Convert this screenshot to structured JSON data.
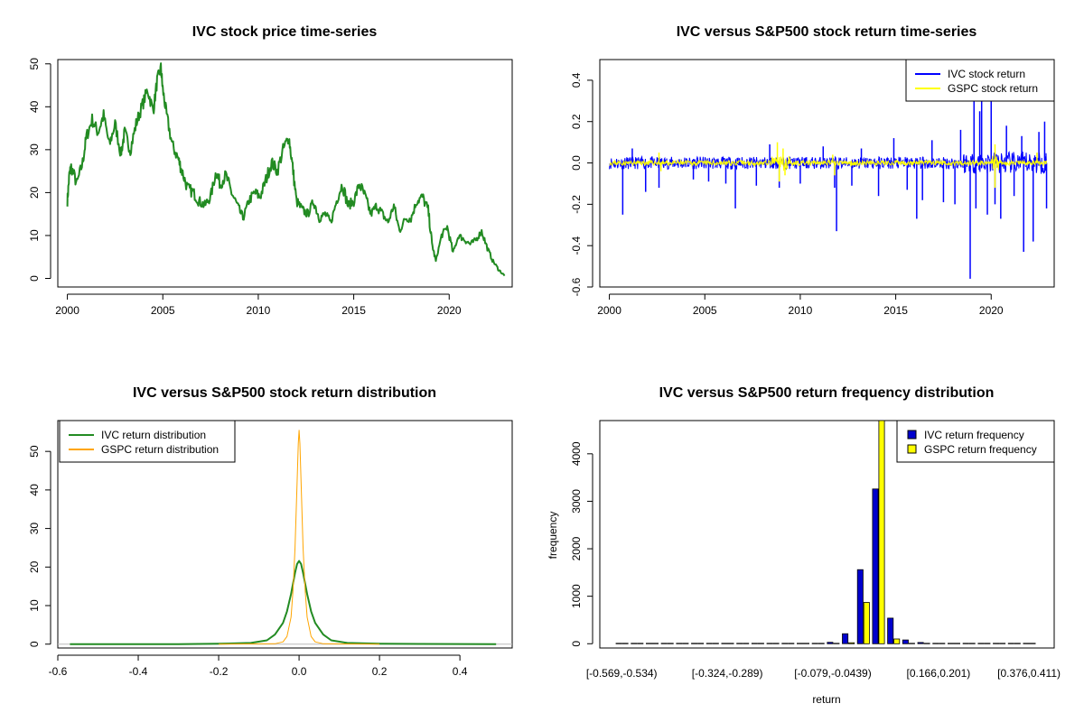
{
  "colors": {
    "price": "#228B22",
    "ivc_return": "#0000FF",
    "gspc_return": "#FFFF00",
    "ivc_density": "#228B22",
    "gspc_density": "#FFA500",
    "ivc_freq": "#0000CD",
    "gspc_freq": "#FFFF00"
  },
  "chart_data": [
    {
      "type": "line",
      "title": "IVC stock price time-series",
      "xlabel": "",
      "ylabel": "",
      "xlim": [
        1999.5,
        2023.3
      ],
      "ylim": [
        -2,
        51
      ],
      "x_ticks": [
        2000,
        2005,
        2010,
        2015,
        2020
      ],
      "y_ticks": [
        0,
        10,
        20,
        30,
        40,
        50
      ],
      "grid": false,
      "series": [
        {
          "color_key": "price",
          "x": [
            2000.0,
            2000.1,
            2000.2,
            2000.5,
            2000.8,
            2001.0,
            2001.3,
            2001.6,
            2001.9,
            2002.2,
            2002.5,
            2002.8,
            2003.0,
            2003.3,
            2003.6,
            2003.9,
            2004.2,
            2004.5,
            2004.7,
            2004.9,
            2005.0,
            2005.2,
            2005.5,
            2005.8,
            2006.0,
            2006.3,
            2006.6,
            2006.9,
            2007.2,
            2007.5,
            2007.8,
            2008.0,
            2008.3,
            2008.6,
            2008.9,
            2009.2,
            2009.5,
            2009.8,
            2010.1,
            2010.4,
            2010.7,
            2011.0,
            2011.3,
            2011.6,
            2011.8,
            2012.0,
            2012.3,
            2012.6,
            2012.9,
            2013.2,
            2013.5,
            2013.8,
            2014.1,
            2014.4,
            2014.7,
            2015.0,
            2015.3,
            2015.6,
            2015.9,
            2016.2,
            2016.5,
            2016.8,
            2017.1,
            2017.4,
            2017.7,
            2018.0,
            2018.3,
            2018.6,
            2018.9,
            2019.1,
            2019.3,
            2019.6,
            2019.9,
            2020.2,
            2020.5,
            2020.8,
            2021.1,
            2021.4,
            2021.7,
            2022.0,
            2022.3,
            2022.6,
            2022.9
          ],
          "y": [
            18,
            24,
            26,
            22,
            27,
            33,
            37,
            34,
            38,
            31,
            36,
            29,
            34,
            30,
            36,
            40,
            44,
            39,
            46,
            49,
            44,
            38,
            31,
            28,
            25,
            21,
            20,
            18,
            17,
            19,
            25,
            22,
            24,
            20,
            17,
            14,
            18,
            20,
            19,
            23,
            27,
            25,
            30,
            33,
            26,
            18,
            16,
            15,
            18,
            14,
            15,
            13,
            18,
            22,
            17,
            18,
            22,
            19,
            15,
            17,
            15,
            13,
            17,
            11,
            14,
            14,
            18,
            19,
            16,
            8,
            4,
            10,
            12,
            6,
            10,
            9,
            8,
            9,
            11,
            7,
            4,
            2,
            0.6
          ]
        }
      ]
    },
    {
      "type": "line",
      "title": "IVC versus S&P500 stock return time-series",
      "xlabel": "",
      "ylabel": "",
      "xlim": [
        1999.5,
        2023.3
      ],
      "ylim": [
        -0.6,
        0.5
      ],
      "x_ticks": [
        2000,
        2005,
        2010,
        2015,
        2020
      ],
      "y_ticks": [
        -0.6,
        -0.4,
        -0.2,
        0.0,
        0.2,
        0.4
      ],
      "y_tick_labels": [
        "-0.6",
        "-0.4",
        "-0.2",
        "0.0",
        "0.2",
        "0.4"
      ],
      "grid": false,
      "legend": "top-right",
      "series": [
        {
          "name": "IVC stock return",
          "color_key": "ivc_return",
          "base_band": [
            -0.03,
            0.03
          ],
          "spikes": [
            [
              2000.7,
              -0.25
            ],
            [
              2001.2,
              0.07
            ],
            [
              2001.9,
              -0.14
            ],
            [
              2002.6,
              -0.12
            ],
            [
              2004.4,
              -0.08
            ],
            [
              2005.2,
              -0.09
            ],
            [
              2006.1,
              -0.1
            ],
            [
              2006.6,
              -0.22
            ],
            [
              2007.7,
              -0.11
            ],
            [
              2008.4,
              0.09
            ],
            [
              2008.9,
              -0.12
            ],
            [
              2010.0,
              -0.1
            ],
            [
              2011.2,
              0.08
            ],
            [
              2011.8,
              -0.12
            ],
            [
              2011.9,
              -0.33
            ],
            [
              2012.7,
              -0.11
            ],
            [
              2013.2,
              0.07
            ],
            [
              2014.1,
              -0.16
            ],
            [
              2014.9,
              0.12
            ],
            [
              2015.6,
              -0.13
            ],
            [
              2016.1,
              -0.27
            ],
            [
              2016.4,
              -0.18
            ],
            [
              2016.9,
              0.11
            ],
            [
              2017.5,
              -0.19
            ],
            [
              2018.1,
              -0.2
            ],
            [
              2018.4,
              0.16
            ],
            [
              2018.9,
              -0.56
            ],
            [
              2019.1,
              0.3
            ],
            [
              2019.2,
              -0.22
            ],
            [
              2019.4,
              0.25
            ],
            [
              2019.5,
              0.32
            ],
            [
              2019.8,
              -0.25
            ],
            [
              2020.0,
              0.3
            ],
            [
              2020.2,
              -0.2
            ],
            [
              2020.5,
              -0.27
            ],
            [
              2020.8,
              0.18
            ],
            [
              2021.2,
              -0.16
            ],
            [
              2021.6,
              0.13
            ],
            [
              2021.7,
              -0.43
            ],
            [
              2022.2,
              -0.38
            ],
            [
              2022.5,
              0.15
            ],
            [
              2022.8,
              0.2
            ],
            [
              2022.9,
              -0.22
            ]
          ]
        },
        {
          "name": "GSPC stock return",
          "color_key": "gspc_return",
          "base_band": [
            -0.012,
            0.012
          ],
          "spikes": [
            [
              2002.6,
              0.05
            ],
            [
              2002.7,
              -0.04
            ],
            [
              2008.8,
              0.1
            ],
            [
              2008.9,
              -0.09
            ],
            [
              2009.1,
              0.07
            ],
            [
              2009.2,
              -0.06
            ],
            [
              2011.7,
              0.04
            ],
            [
              2011.8,
              -0.06
            ],
            [
              2020.2,
              0.09
            ],
            [
              2020.2,
              -0.12
            ],
            [
              2022.4,
              0.05
            ]
          ]
        }
      ]
    },
    {
      "type": "line",
      "title": "IVC versus S&P500 stock return distribution",
      "xlabel": "",
      "ylabel": "",
      "xlim": [
        -0.6,
        0.53
      ],
      "ylim": [
        -1,
        58
      ],
      "x_ticks": [
        -0.6,
        -0.4,
        -0.2,
        0.0,
        0.2,
        0.4
      ],
      "x_tick_labels": [
        "-0.6",
        "-0.4",
        "-0.2",
        "0.0",
        "0.2",
        "0.4"
      ],
      "y_ticks": [
        0,
        10,
        20,
        30,
        40,
        50
      ],
      "grid": false,
      "legend": "top-left",
      "series": [
        {
          "name": "IVC return distribution",
          "color_key": "ivc_density",
          "x": [
            -0.57,
            -0.3,
            -0.2,
            -0.12,
            -0.08,
            -0.06,
            -0.04,
            -0.03,
            -0.02,
            -0.01,
            -0.005,
            0.0,
            0.005,
            0.01,
            0.02,
            0.03,
            0.04,
            0.06,
            0.08,
            0.12,
            0.2,
            0.3,
            0.49
          ],
          "y": [
            0,
            0,
            0.1,
            0.3,
            1.0,
            2.5,
            5.5,
            8.5,
            13.0,
            18.5,
            20.8,
            21.6,
            20.8,
            18.5,
            13.0,
            8.5,
            5.5,
            2.5,
            1.0,
            0.3,
            0.1,
            0.05,
            0
          ]
        },
        {
          "name": "GSPC return distribution",
          "color_key": "gspc_density",
          "x": [
            -0.2,
            -0.06,
            -0.04,
            -0.03,
            -0.02,
            -0.015,
            -0.01,
            -0.005,
            -0.002,
            0.0,
            0.002,
            0.005,
            0.01,
            0.015,
            0.02,
            0.03,
            0.04,
            0.06,
            0.2
          ],
          "y": [
            0,
            0.1,
            0.6,
            2.0,
            7.0,
            14.0,
            25.0,
            42.0,
            52.0,
            55.5,
            52.0,
            42.0,
            25.0,
            14.0,
            7.0,
            2.0,
            0.6,
            0.1,
            0
          ]
        }
      ]
    },
    {
      "type": "bar",
      "title": "IVC versus S&P500 return frequency distribution",
      "xlabel": "return",
      "ylabel": "frequency",
      "ylim": [
        0,
        4700
      ],
      "y_ticks": [
        0,
        1000,
        2000,
        3000,
        4000
      ],
      "grid": false,
      "legend": "top-right",
      "shown_category_labels": [
        "[-0.569,-0.534)",
        "[-0.324,-0.289)",
        "[-0.079,-0.0439)",
        "[0.166,0.201)",
        "[0.376,0.411)"
      ],
      "category_count": 28,
      "label_positions": [
        0,
        7,
        14,
        21,
        27
      ],
      "series": [
        {
          "name": "IVC return frequency",
          "color_key": "ivc_freq",
          "values": [
            1,
            0,
            0,
            0,
            0,
            0,
            0,
            0,
            0,
            0,
            0,
            0,
            2,
            5,
            30,
            210,
            1560,
            3260,
            540,
            80,
            25,
            8,
            3,
            2,
            1,
            0,
            1,
            1
          ]
        },
        {
          "name": "GSPC return frequency",
          "color_key": "gspc_freq",
          "values": [
            0,
            0,
            0,
            0,
            0,
            0,
            0,
            0,
            0,
            0,
            0,
            0,
            0,
            0,
            0,
            20,
            870,
            4700,
            100,
            5,
            0,
            0,
            0,
            0,
            0,
            0,
            0,
            0
          ]
        }
      ]
    }
  ]
}
